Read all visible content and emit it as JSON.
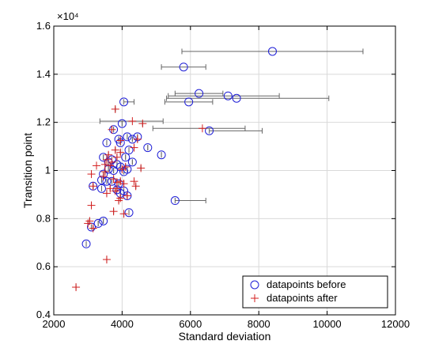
{
  "chart_data": {
    "type": "scatter",
    "xlabel": "Standard deviation",
    "ylabel": "Transition point",
    "y_multiplier_label": "×10⁴",
    "xlim": [
      2000,
      12000
    ],
    "ylim": [
      0.4,
      1.6
    ],
    "xticks": [
      "2000",
      "4000",
      "6000",
      "8000",
      "10000",
      "12000"
    ],
    "yticks": [
      "0.4",
      "0.6",
      "0.8",
      "1",
      "1.2",
      "1.4",
      "1.6"
    ],
    "grid": true,
    "legend_position": "bottom-right",
    "colors": {
      "before": "#1f1fd6",
      "after": "#d41f1f",
      "errorbar": "#666666"
    },
    "series": [
      {
        "name": "datapoints before",
        "marker": "circle",
        "x": [
          8400,
          5800,
          6250,
          7100,
          7350,
          5950,
          4050,
          4000,
          3750,
          6550,
          3900,
          4150,
          4300,
          4450,
          3550,
          3950,
          4200,
          4750,
          5150,
          4100,
          3450,
          3700,
          3600,
          3850,
          3950,
          4150,
          4300,
          4050,
          3750,
          3600,
          3450,
          3400,
          3550,
          3700,
          3900,
          3150,
          3400,
          3850,
          4050,
          3950,
          4150,
          5550,
          4200,
          3450,
          3300,
          3100,
          2950
        ],
        "y": [
          1.495,
          1.43,
          1.32,
          1.31,
          1.3,
          1.285,
          1.285,
          1.195,
          1.17,
          1.165,
          1.13,
          1.14,
          1.13,
          1.14,
          1.115,
          1.115,
          1.085,
          1.095,
          1.065,
          1.055,
          1.055,
          1.045,
          1.035,
          1.025,
          1.015,
          1.005,
          1.035,
          0.995,
          1.0,
          1.005,
          0.985,
          0.96,
          0.955,
          0.955,
          0.945,
          0.935,
          0.925,
          0.92,
          0.915,
          0.905,
          0.895,
          0.875,
          0.825,
          0.79,
          0.78,
          0.765,
          0.695
        ],
        "xerr_low": [
          2650,
          650,
          700,
          1750,
          2050,
          700,
          0,
          0,
          0,
          0,
          0,
          0,
          0,
          0,
          0,
          0,
          0,
          0,
          0,
          0,
          0,
          0,
          0,
          0,
          0,
          0,
          0,
          0,
          0,
          0,
          0,
          0,
          0,
          0,
          0,
          0,
          0,
          0,
          0,
          0,
          0,
          0,
          0,
          0,
          0,
          0,
          0
        ],
        "xerr_high": [
          2650,
          650,
          700,
          1500,
          2700,
          700,
          300,
          0,
          0,
          1550,
          0,
          0,
          0,
          0,
          0,
          0,
          0,
          0,
          0,
          0,
          0,
          0,
          0,
          0,
          0,
          0,
          0,
          0,
          0,
          0,
          0,
          0,
          0,
          0,
          0,
          0,
          0,
          0,
          0,
          0,
          0,
          900,
          0,
          0,
          0,
          0,
          0
        ]
      },
      {
        "name": "datapoints after",
        "marker": "plus",
        "x": [
          3800,
          4300,
          4600,
          6350,
          3700,
          3950,
          4450,
          4350,
          3800,
          3950,
          3600,
          3850,
          3550,
          3700,
          3500,
          3650,
          4100,
          4550,
          3250,
          4000,
          3500,
          3100,
          3450,
          3750,
          3950,
          3850,
          4050,
          4350,
          3850,
          4400,
          3650,
          3800,
          3150,
          3550,
          4150,
          3950,
          3900,
          3100,
          3750,
          4050,
          3050,
          3000,
          3150,
          3550,
          2650
        ],
        "y": [
          1.255,
          1.205,
          1.195,
          1.175,
          1.17,
          1.125,
          1.13,
          1.095,
          1.085,
          1.075,
          1.065,
          1.055,
          1.045,
          1.035,
          1.025,
          1.02,
          1.015,
          1.01,
          1.02,
          1.005,
          0.995,
          0.985,
          0.975,
          0.965,
          0.955,
          0.95,
          0.945,
          0.955,
          0.925,
          0.935,
          0.925,
          0.915,
          0.935,
          0.905,
          0.895,
          0.885,
          0.875,
          0.855,
          0.83,
          0.82,
          0.79,
          0.78,
          0.76,
          0.63,
          0.515
        ],
        "xerr_low": [
          0,
          950,
          0,
          1450,
          0,
          0,
          0,
          0,
          0,
          0,
          0,
          0,
          0,
          0,
          0,
          0,
          0,
          0,
          0,
          0,
          0,
          0,
          0,
          0,
          0,
          0,
          0,
          0,
          0,
          0,
          0,
          0,
          0,
          0,
          0,
          0,
          0,
          0,
          0,
          0,
          0,
          0,
          0,
          0,
          0
        ],
        "xerr_high": [
          0,
          900,
          0,
          1250,
          0,
          0,
          0,
          0,
          0,
          0,
          0,
          0,
          0,
          0,
          0,
          0,
          0,
          0,
          0,
          0,
          0,
          0,
          0,
          0,
          0,
          0,
          0,
          0,
          0,
          0,
          0,
          0,
          0,
          0,
          0,
          0,
          0,
          0,
          0,
          0,
          0,
          0,
          0,
          0,
          0
        ]
      }
    ]
  }
}
